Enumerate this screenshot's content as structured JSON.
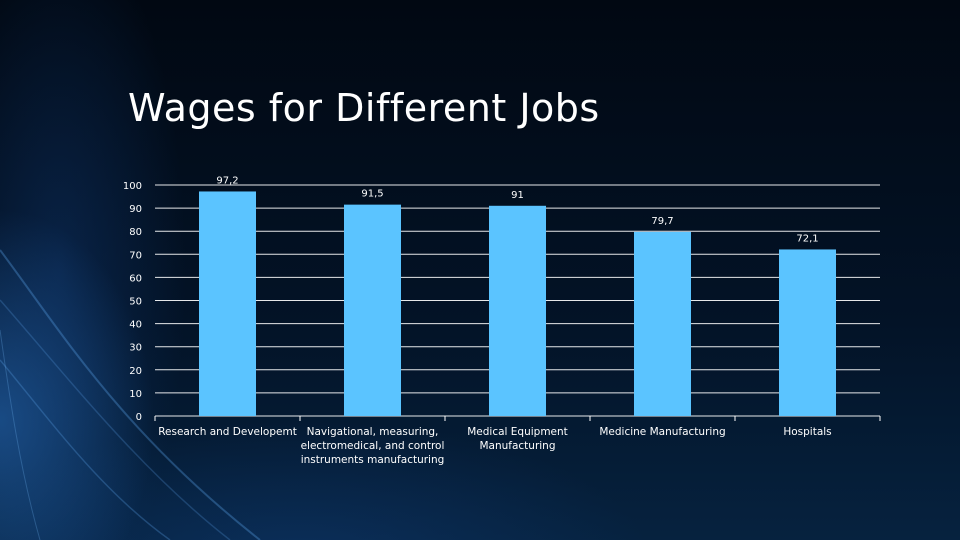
{
  "slide": {
    "title": "Wages for Different Jobs"
  },
  "colors": {
    "bar": "#5bc4ff",
    "gridline": "#ffffff",
    "text": "#ffffff",
    "background": "#020b17"
  },
  "chart_data": {
    "type": "bar",
    "title": "",
    "xlabel": "",
    "ylabel": "",
    "ylim": [
      0,
      100
    ],
    "ytick_step": 10,
    "grid": true,
    "legend": "none",
    "categories": [
      [
        "Research and Developemt"
      ],
      [
        "Navigational, measuring,",
        "electromedical, and control",
        "instruments manufacturing"
      ],
      [
        "Medical Equipment",
        "Manufacturing"
      ],
      [
        "Medicine Manufacturing"
      ],
      [
        "Hospitals"
      ]
    ],
    "values": [
      97.2,
      91.5,
      91,
      79.7,
      72.1
    ],
    "data_labels": [
      "97,2",
      "91,5",
      "91",
      "79,7",
      "72,1"
    ]
  }
}
